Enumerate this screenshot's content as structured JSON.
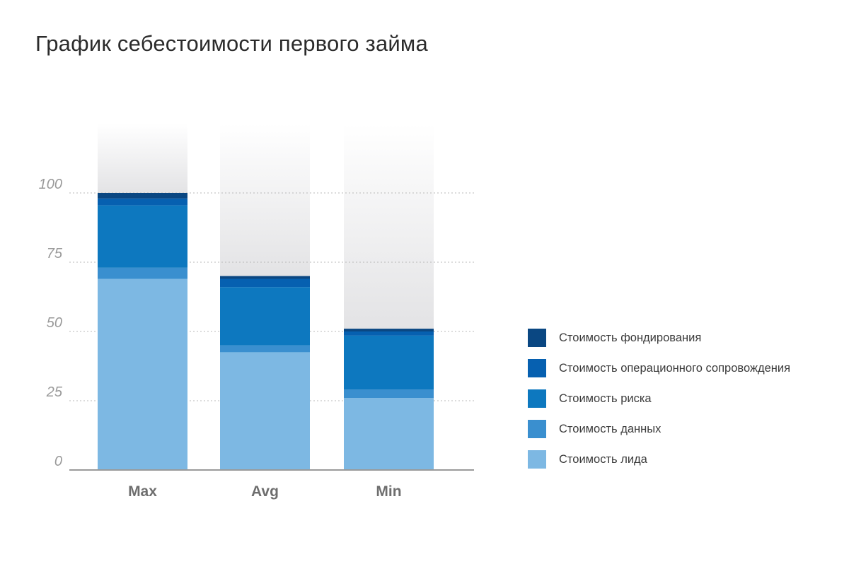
{
  "chart_data": {
    "type": "bar",
    "stacked": true,
    "title": "График себестоимости первого займа",
    "xlabel": "",
    "ylabel": "",
    "categories": [
      "Max",
      "Avg",
      "Min"
    ],
    "y_ticks": [
      "0",
      "25",
      "50",
      "75",
      "100"
    ],
    "ylim": [
      0,
      100
    ],
    "grid": "horizontal dotted",
    "legend_position": "right",
    "background_bar_top": 125,
    "series": [
      {
        "name": "Стоимость лида",
        "color": "#7db8e3",
        "values": [
          69,
          42.5,
          26
        ]
      },
      {
        "name": "Стоимость данных",
        "color": "#3a8fcf",
        "values": [
          4,
          2.5,
          3
        ]
      },
      {
        "name": "Стоимость риска",
        "color": "#0d78bf",
        "values": [
          22.5,
          21,
          19.5
        ]
      },
      {
        "name": "Стоимость операционного сопровождения",
        "color": "#0660b0",
        "values": [
          2.5,
          3,
          1.5
        ]
      },
      {
        "name": "Стоимость фондирования",
        "color": "#0a4782",
        "values": [
          2,
          1,
          1
        ]
      }
    ],
    "legend_order": [
      4,
      3,
      2,
      1,
      0
    ]
  }
}
